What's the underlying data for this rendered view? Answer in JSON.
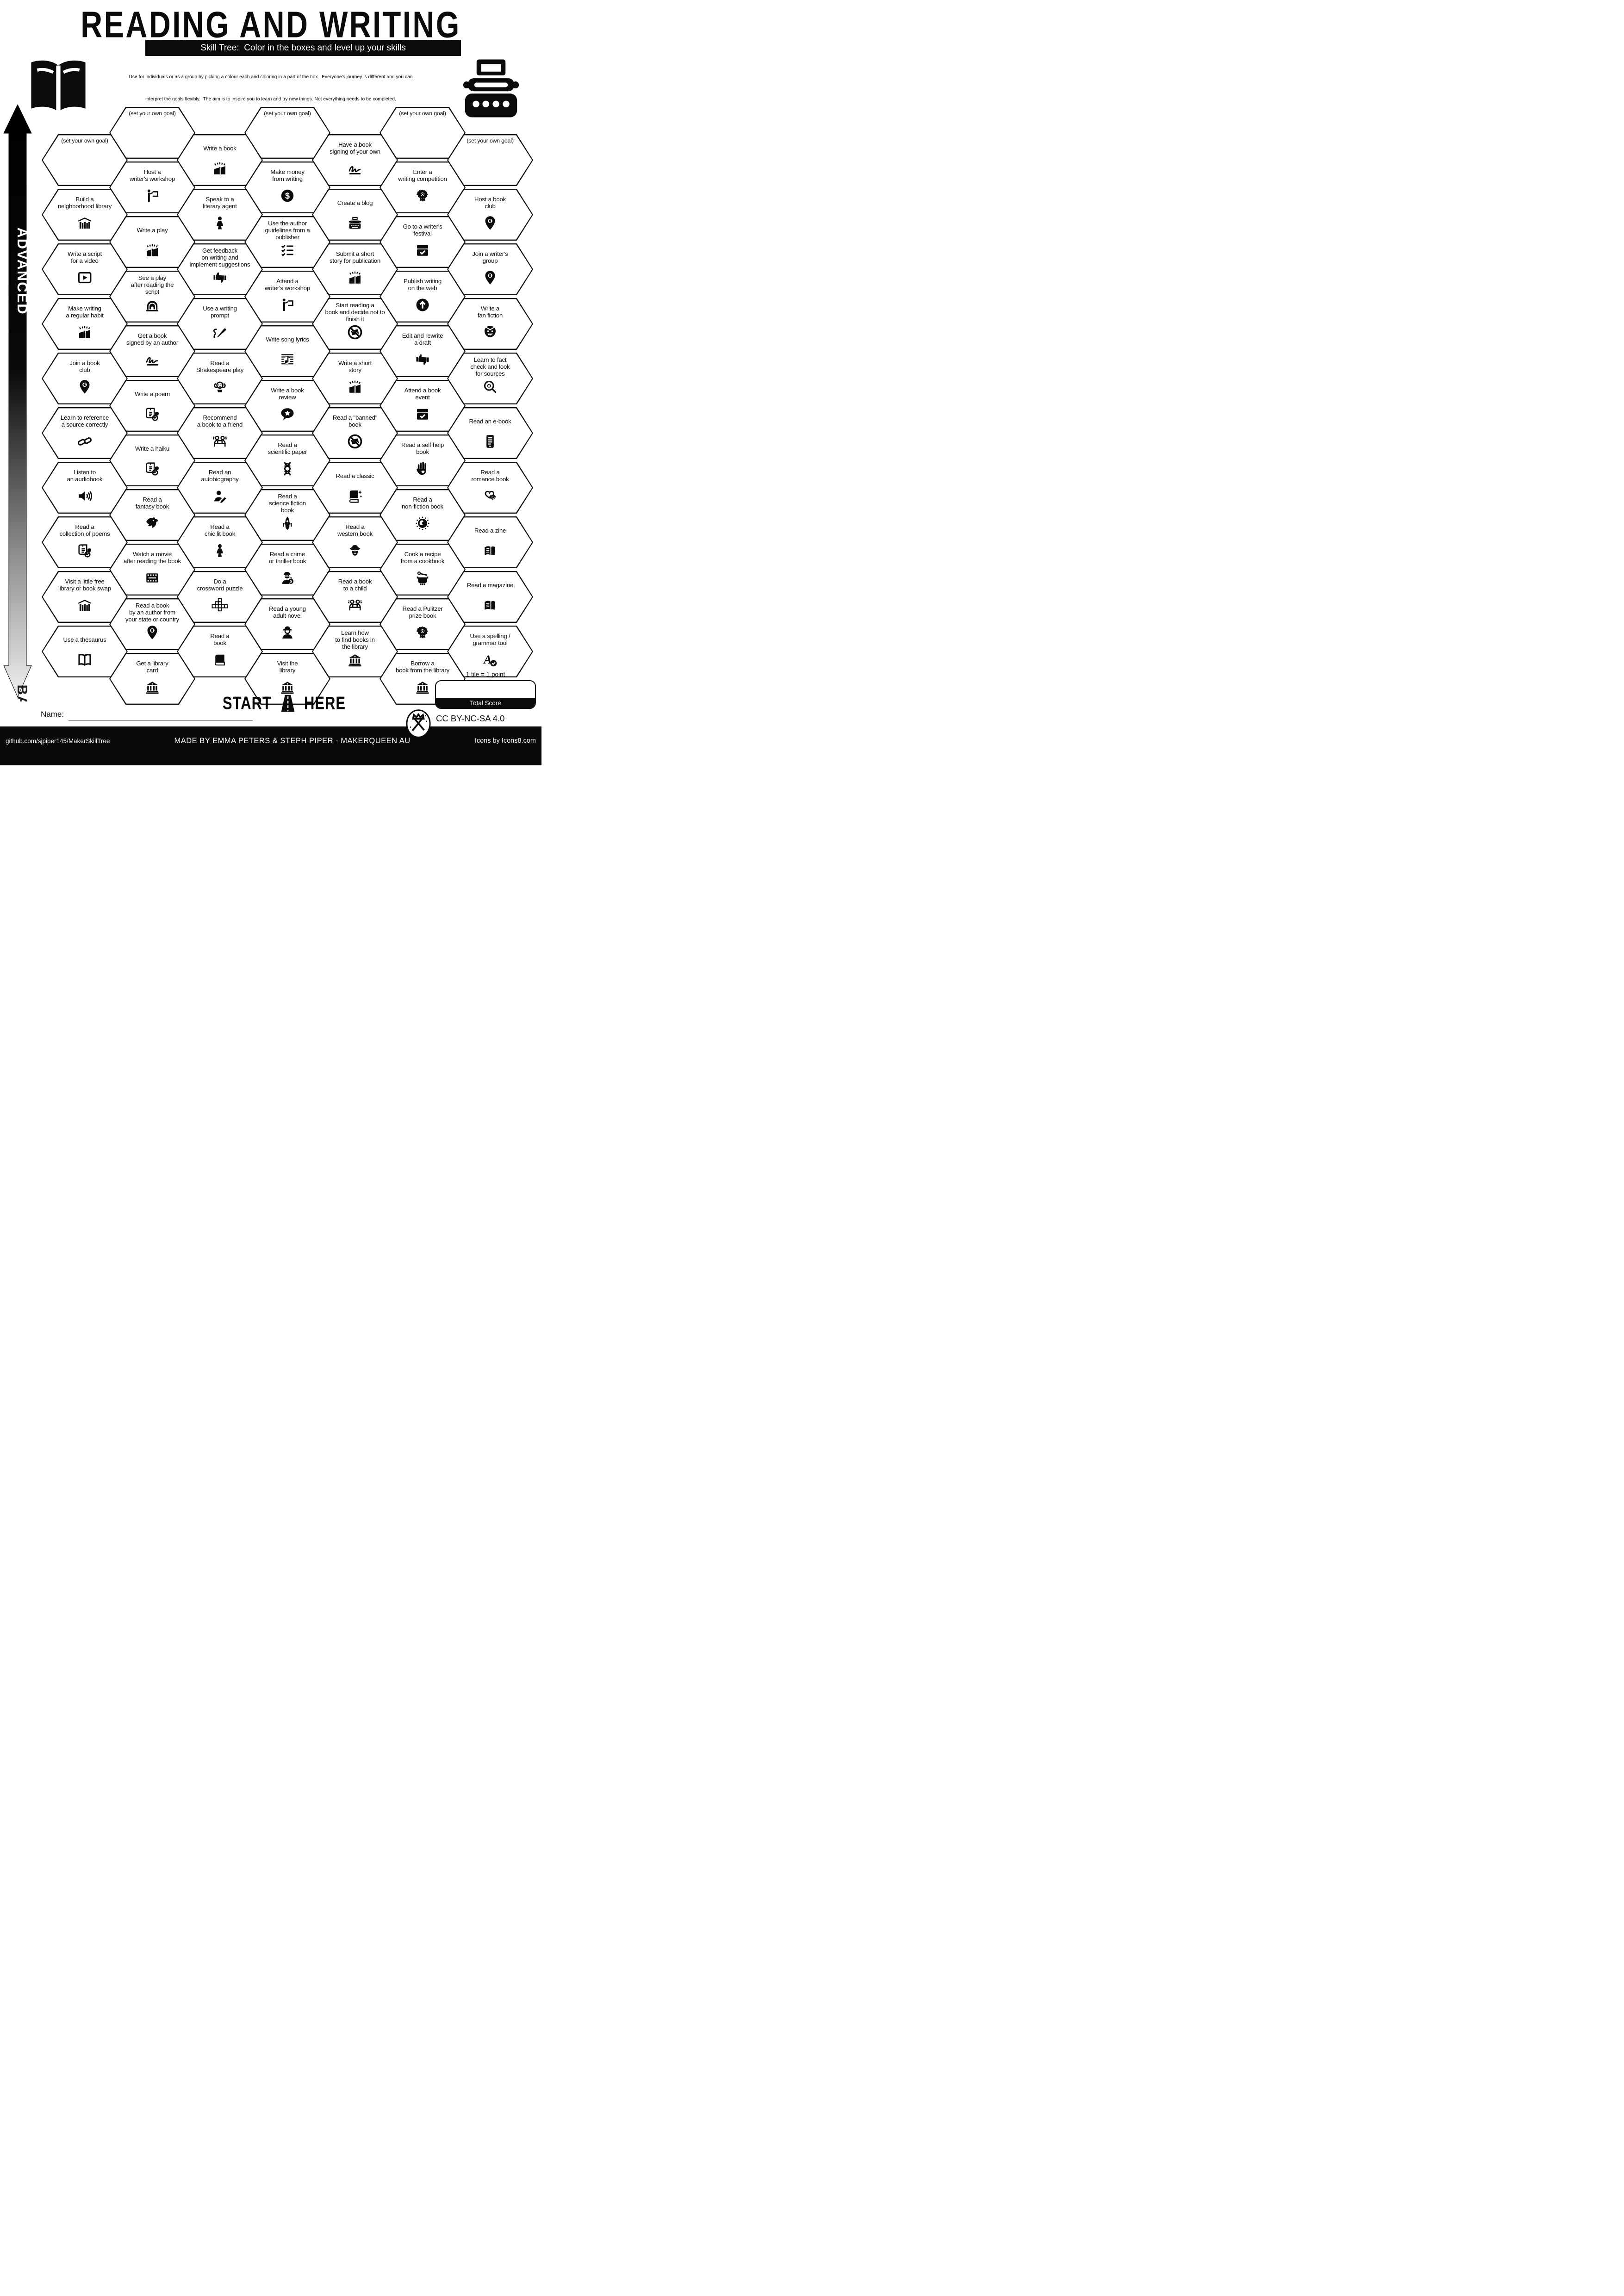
{
  "title": "READING AND WRITING",
  "subtitle": "Skill Tree:  Color in the boxes and level up your skills",
  "description": {
    "line1": "Use for individuals or as a group by picking a colour each and coloring in a part of the box.  Everyone's journey is different and you can",
    "line2": "interpret the goals flexibly.  The aim is to inspire you to learn and try new things. Not everything needs to be completed."
  },
  "axis": {
    "top_label": "ADVANCED",
    "bottom_label": "BASICS"
  },
  "header_icons": {
    "left": "open-book-icon",
    "right": "typewriter-icon"
  },
  "start_marker": {
    "left": "START",
    "right": "HERE",
    "icon": "road-icon"
  },
  "name_field": {
    "label": "Name:"
  },
  "scoring": {
    "note": "1 tile = 1 point",
    "box_label": "Total Score"
  },
  "license": {
    "text": "CC BY-NC-SA 4.0",
    "logo": "makerqueen-logo-icon"
  },
  "footer": {
    "left": "github.com/sjpiper145/MakerSkillTree",
    "center": "MADE BY EMMA PETERS & STEPH PIPER  -  MAKERQUEEN AU",
    "right": "Icons by Icons8.com"
  },
  "colors": {
    "ink": "#0b0b0b",
    "paper": "#ffffff"
  },
  "grid": {
    "columns": [
      {
        "tiles": [
          {
            "label": "(set your own goal)",
            "icon": ""
          },
          {
            "label": "Build a\nneighborhood library",
            "icon": "library-shelf-icon"
          },
          {
            "label": "Write a script\nfor a video",
            "icon": "video-play-icon"
          },
          {
            "label": "Make writing\na regular habit",
            "icon": "book-burst-icon"
          },
          {
            "label": "Join a book\nclub",
            "icon": "location-pin-icon"
          },
          {
            "label": "Learn to reference\na source correctly",
            "icon": "chain-links-icon"
          },
          {
            "label": "Listen to\nan audiobook",
            "icon": "speaker-icon"
          },
          {
            "label": "Read a\ncollection of poems",
            "icon": "poem-scroll-icon"
          },
          {
            "label": "Visit a little free\nlibrary or book swap",
            "icon": "library-shelf-icon"
          },
          {
            "label": "Use a thesaurus",
            "icon": "open-book-icon"
          }
        ]
      },
      {
        "tiles": [
          {
            "label": "(set your own goal)",
            "icon": ""
          },
          {
            "label": "Host a\nwriter's workshop",
            "icon": "presenter-icon"
          },
          {
            "label": "Write a play",
            "icon": "book-burst-icon"
          },
          {
            "label": "See a play\nafter reading the\nscript",
            "icon": "theater-icon"
          },
          {
            "label": "Get a book\nsigned by an author",
            "icon": "signature-icon"
          },
          {
            "label": "Write a poem",
            "icon": "poem-scroll-icon"
          },
          {
            "label": "Write a haiku",
            "icon": "poem-scroll-icon"
          },
          {
            "label": "Read a\nfantasy book",
            "icon": "dragon-icon"
          },
          {
            "label": "Watch a movie\nafter reading the book",
            "icon": "film-strip-icon"
          },
          {
            "label": "Read a book\nby an author from\nyour state or country",
            "icon": "location-pin-icon"
          },
          {
            "label": "Get a library\ncard",
            "icon": "library-building-icon"
          }
        ]
      },
      {
        "tiles": [
          {
            "label": "Write a book",
            "icon": "book-burst-icon"
          },
          {
            "label": "Speak to a\nliterary agent",
            "icon": "woman-icon"
          },
          {
            "label": "Get feedback\non writing and\nimplement suggestions",
            "icon": "thumbs-icon"
          },
          {
            "label": "Use a writing\nprompt",
            "icon": "writing-prompt-icon"
          },
          {
            "label": "Read a\nShakespeare play",
            "icon": "shakespeare-icon"
          },
          {
            "label": "Recommend\na book to a friend",
            "icon": "friends-laptop-icon"
          },
          {
            "label": "Read an\nautobiography",
            "icon": "person-pen-icon"
          },
          {
            "label": "Read a\nchic lit book",
            "icon": "woman-icon"
          },
          {
            "label": "Do a\ncrossword puzzle",
            "icon": "crossword-icon"
          },
          {
            "label": "Read a\nbook",
            "icon": "book-closed-icon"
          }
        ]
      },
      {
        "tiles": [
          {
            "label": "(set your own goal)",
            "icon": ""
          },
          {
            "label": "Make money\nfrom writing",
            "icon": "dollar-circle-icon"
          },
          {
            "label": "Use the author\nguidelines from a\npublisher",
            "icon": "checklist-icon"
          },
          {
            "label": "Attend a\nwriter's workshop",
            "icon": "presenter-icon"
          },
          {
            "label": "Write song lyrics",
            "icon": "music-sheet-icon"
          },
          {
            "label": "Write a book\nreview",
            "icon": "speech-star-icon"
          },
          {
            "label": "Read a\nscientific paper",
            "icon": "dna-icon"
          },
          {
            "label": "Read a\nscience fiction\nbook",
            "icon": "spaceship-icon"
          },
          {
            "label": "Read a crime\nor thriller book",
            "icon": "robber-icon"
          },
          {
            "label": "Read a young\nadult novel",
            "icon": "cap-person-icon"
          },
          {
            "label": "Visit the\nlibrary",
            "icon": "library-building-icon"
          }
        ]
      },
      {
        "tiles": [
          {
            "label": "Have a book\nsigning of your own",
            "icon": "signature-icon"
          },
          {
            "label": "Create a blog",
            "icon": "typewriter-small-icon"
          },
          {
            "label": "Submit a short\nstory for publication",
            "icon": "book-burst-icon"
          },
          {
            "label": "Start reading a\nbook and decide not to\nfinish it",
            "icon": "no-book-icon"
          },
          {
            "label": "Write a short\nstory",
            "icon": "book-burst-icon"
          },
          {
            "label": "Read a \"banned\"\nbook",
            "icon": "no-book-icon"
          },
          {
            "label": "Read a classic",
            "icon": "book-sparkle-icon"
          },
          {
            "label": "Read a\nwestern book",
            "icon": "cowboy-icon"
          },
          {
            "label": "Read a book\nto a child",
            "icon": "friends-laptop-icon"
          },
          {
            "label": "Learn how\nto find books in\nthe library",
            "icon": "library-building-icon"
          }
        ]
      },
      {
        "tiles": [
          {
            "label": "(set your own goal)",
            "icon": ""
          },
          {
            "label": "Enter a\nwriting competition",
            "icon": "rosette-icon"
          },
          {
            "label": "Go to a writer's\nfestival",
            "icon": "calendar-check-icon"
          },
          {
            "label": "Publish writing\non the web",
            "icon": "upload-circle-icon"
          },
          {
            "label": "Edit and rewrite\na draft",
            "icon": "thumbs-icon"
          },
          {
            "label": "Attend a book\nevent",
            "icon": "calendar-check-icon"
          },
          {
            "label": "Read a self help\nbook",
            "icon": "hand-heart-icon"
          },
          {
            "label": "Read a\nnon-fiction book",
            "icon": "globe-dots-icon"
          },
          {
            "label": "Cook a recipe\nfrom a cookbook",
            "icon": "pot-icon"
          },
          {
            "label": "Read a Pulitzer\nprize book",
            "icon": "rosette-icon"
          },
          {
            "label": "Borrow a\nbook from the library",
            "icon": "library-building-icon"
          }
        ]
      },
      {
        "tiles": [
          {
            "label": "(set your own goal)",
            "icon": ""
          },
          {
            "label": "Host a book\nclub",
            "icon": "location-pin-icon"
          },
          {
            "label": "Join a writer's\ngroup",
            "icon": "location-pin-icon"
          },
          {
            "label": "Write a\nfan fiction",
            "icon": "vampire-icon"
          },
          {
            "label": "Learn to fact\ncheck and look\nfor sources",
            "icon": "magnifier-eye-icon"
          },
          {
            "label": "Read an e-book",
            "icon": "e-reader-icon"
          },
          {
            "label": "Read a\nromance book",
            "icon": "hearts-icon"
          },
          {
            "label": "Read a zine",
            "icon": "zine-icon"
          },
          {
            "label": "Read a magazine",
            "icon": "zine-icon"
          },
          {
            "label": "Use a spelling /\ngrammar tool",
            "icon": "spell-check-icon"
          }
        ]
      }
    ]
  }
}
